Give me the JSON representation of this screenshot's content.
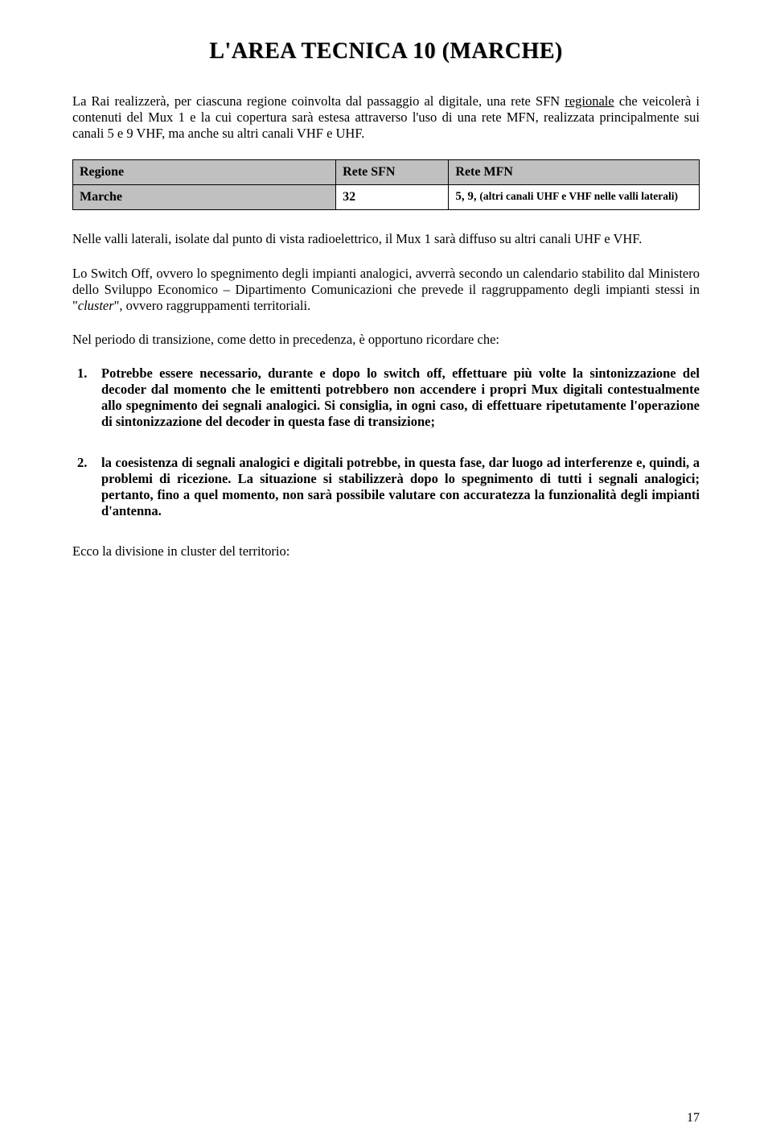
{
  "title": "L'AREA TECNICA 10 (MARCHE)",
  "intro_pre": "La Rai realizzerà, per ciascuna regione coinvolta dal passaggio al digitale, una rete SFN ",
  "intro_underline": "regionale",
  "intro_post": " che veicolerà i contenuti del Mux 1 e la cui copertura sarà estesa attraverso l'uso di una rete MFN, realizzata principalmente sui canali 5 e 9 VHF, ma anche su altri canali VHF e UHF.",
  "table": {
    "headers": {
      "col1": "Regione",
      "col2": "Rete SFN",
      "col3": "Rete MFN"
    },
    "row": {
      "region": "Marche",
      "sfn": "32",
      "mfn_pre": "5, 9, ",
      "mfn_small": "(altri canali UHF e VHF nelle valli laterali)"
    }
  },
  "p_nelle_valli": "Nelle valli laterali, isolate dal punto di vista radioelettrico, il Mux 1 sarà diffuso su altri canali UHF e VHF.",
  "p_switch_pre": "Lo Switch Off, ovvero lo spegnimento degli impianti analogici, avverrà secondo un calendario stabilito dal Ministero dello Sviluppo Economico – Dipartimento Comunicazioni che prevede il raggruppamento degli impianti stessi in \"",
  "p_switch_italic": "cluster",
  "p_switch_post": "\", ovvero raggruppamenti territoriali.",
  "p_transizione": "Nel periodo di transizione, come detto in precedenza, è opportuno ricordare che:",
  "list": {
    "item1_marker": "1.",
    "item1_pre": "",
    "item1_bold": "Potrebbe essere necessario, durante e dopo lo switch off, effettuare più volte la sintonizzazione del decoder dal momento che le emittenti potrebbero non accendere i propri Mux digitali contestualmente allo spegnimento dei segnali analogici",
    "item1_post": ". Si consiglia, in ogni caso, di effettuare ripetutamente l'operazione di sintonizzazione del decoder in questa fase di transizione;",
    "item2_marker": "2.",
    "item2_bold1": "la coesistenza di segnali analogici e digitali potrebbe, in questa fase, dar luogo ad interferenze e, quindi, a problemi di ricezione",
    "item2_mid": ". ",
    "item2_bold2": "La situazione si stabilizzerà dopo lo spegnimento di tutti i segnali analogici; pertanto, fino a quel momento, non sarà possibile valutare con accuratezza la funzionalità degli impianti d'antenna."
  },
  "p_ecco": "Ecco la divisione in cluster del territorio:",
  "page_number": "17"
}
